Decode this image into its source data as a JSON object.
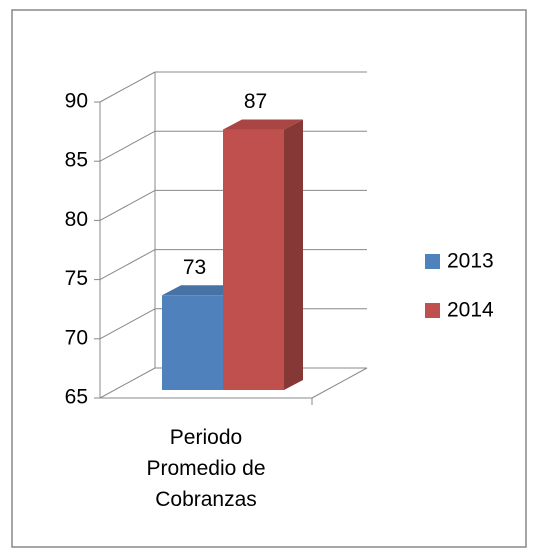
{
  "chart_data": {
    "type": "bar3d",
    "categories": [
      "Periodo Promedio de Cobranzas"
    ],
    "series": [
      {
        "name": "2013",
        "color": "#4f81bd",
        "values": [
          73
        ]
      },
      {
        "name": "2014",
        "color": "#c0504d",
        "values": [
          87
        ]
      }
    ],
    "ylim": [
      65,
      90
    ],
    "yticks": [
      65,
      70,
      75,
      80,
      85,
      90
    ],
    "grid": true,
    "legend": "right"
  }
}
